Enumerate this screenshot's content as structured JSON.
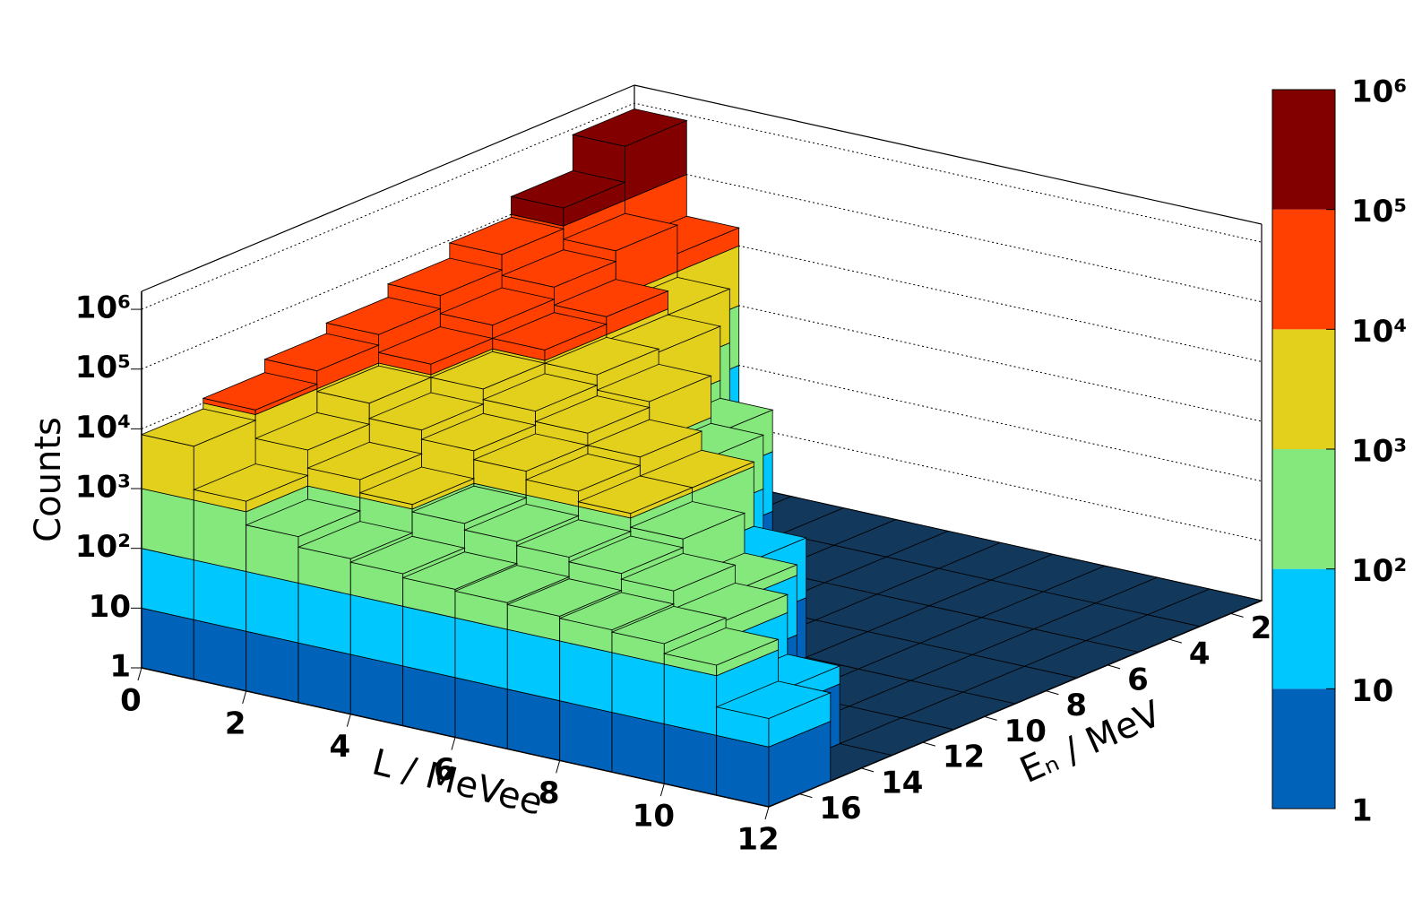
{
  "chart_data": {
    "type": "lego",
    "xlabel": "L / MeVee",
    "ylabel": "Eₙ / MeV",
    "zlabel": "Counts",
    "x_bins": [
      0,
      1,
      2,
      3,
      4,
      5,
      6,
      7,
      8,
      9,
      10,
      11,
      12
    ],
    "y_bins": [
      1,
      3,
      5,
      7,
      9,
      11,
      13,
      15,
      17
    ],
    "values": [
      [
        800000,
        20000,
        0,
        0,
        0,
        0,
        0,
        0,
        0,
        0,
        0,
        0
      ],
      [
        200000,
        60000,
        8000,
        0,
        0,
        0,
        0,
        0,
        0,
        0,
        0,
        0
      ],
      [
        90000,
        40000,
        20000,
        8000,
        500,
        0,
        0,
        0,
        0,
        0,
        0,
        0
      ],
      [
        50000,
        25000,
        15000,
        9000,
        5000,
        800,
        0,
        0,
        0,
        0,
        0,
        0
      ],
      [
        30000,
        15000,
        9000,
        6000,
        4000,
        2500,
        1200,
        100,
        0,
        0,
        0,
        0
      ],
      [
        20000,
        9000,
        5000,
        3500,
        2500,
        1800,
        1200,
        700,
        150,
        0,
        0,
        0
      ],
      [
        12000,
        4000,
        2000,
        1200,
        900,
        700,
        600,
        500,
        400,
        200,
        20,
        0
      ],
      [
        8000,
        1500,
        600,
        400,
        350,
        300,
        280,
        260,
        240,
        220,
        150,
        30
      ]
    ],
    "xlim": [
      0,
      12
    ],
    "xticks": [
      0,
      2,
      4,
      6,
      8,
      10,
      12
    ],
    "ylim": [
      1,
      17
    ],
    "yticks": [
      2,
      4,
      6,
      8,
      10,
      12,
      14,
      16
    ],
    "zlim": [
      1,
      2000000
    ],
    "zlog": true,
    "zticks": [
      1,
      10,
      {
        "value": 100,
        "label": "10²"
      },
      {
        "value": 1000,
        "label": "10³"
      },
      {
        "value": 10000,
        "label": "10⁴"
      },
      {
        "value": 100000,
        "label": "10⁵"
      },
      {
        "value": 1000000,
        "label": "10⁶"
      }
    ],
    "palette": [
      "#0062b8",
      "#00c8ff",
      "#84e87c",
      "#e2d01c",
      "#ff4000",
      "#820000"
    ],
    "floor_color": "#12385c",
    "grid": true
  }
}
